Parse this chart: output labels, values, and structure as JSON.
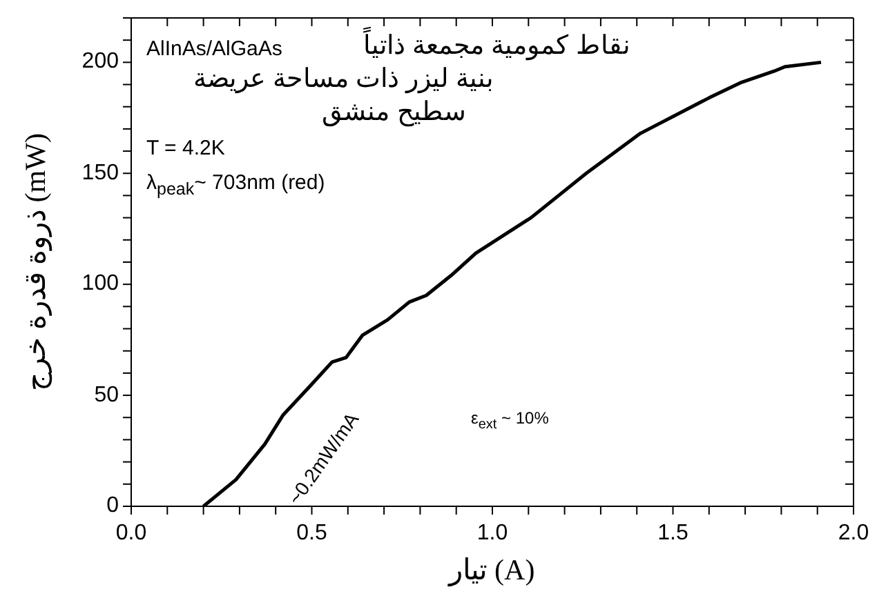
{
  "chart_data": {
    "type": "line",
    "xlabel": "تيار (A)",
    "ylabel": "ذروة قدرة خرج (mW)",
    "x": [
      0.2,
      0.29,
      0.37,
      0.42,
      0.5,
      0.556,
      0.595,
      0.64,
      0.71,
      0.77,
      0.817,
      0.886,
      0.954,
      1.107,
      1.26,
      1.41,
      1.6,
      1.69,
      1.78,
      1.81,
      1.91
    ],
    "series": [
      {
        "color": "#000000",
        "values": [
          0,
          12,
          28,
          41,
          55,
          65,
          67,
          77,
          84,
          92,
          95,
          104,
          114,
          130,
          150,
          168,
          184,
          191,
          196,
          198,
          200
        ]
      }
    ],
    "xlim": [
      0,
      2
    ],
    "xticks": [
      {
        "value": 0,
        "label": "0.0"
      },
      {
        "value": 0.1,
        "label": null
      },
      {
        "value": 0.2,
        "label": null
      },
      {
        "value": 0.3,
        "label": null
      },
      {
        "value": 0.4,
        "label": null
      },
      {
        "value": 0.5,
        "label": "0.5"
      },
      {
        "value": 0.6,
        "label": null
      },
      {
        "value": 0.7,
        "label": null
      },
      {
        "value": 0.8,
        "label": null
      },
      {
        "value": 0.9,
        "label": null
      },
      {
        "value": 1,
        "label": "1.0"
      },
      {
        "value": 1.1,
        "label": null
      },
      {
        "value": 1.2,
        "label": null
      },
      {
        "value": 1.3,
        "label": null
      },
      {
        "value": 1.4,
        "label": null
      },
      {
        "value": 1.5,
        "label": "1.5"
      },
      {
        "value": 1.6,
        "label": null
      },
      {
        "value": 1.7,
        "label": null
      },
      {
        "value": 1.8,
        "label": null
      },
      {
        "value": 1.9,
        "label": null
      },
      {
        "value": 2,
        "label": "2.0"
      }
    ],
    "ylim": [
      0,
      220
    ],
    "yticks": [
      0,
      {
        "value": 10,
        "label": null
      },
      {
        "value": 20,
        "label": null
      },
      {
        "value": 30,
        "label": null
      },
      {
        "value": 40,
        "label": null
      },
      50,
      {
        "value": 60,
        "label": null
      },
      {
        "value": 70,
        "label": null
      },
      {
        "value": 80,
        "label": null
      },
      {
        "value": 90,
        "label": null
      },
      100,
      {
        "value": 110,
        "label": null
      },
      {
        "value": 120,
        "label": null
      },
      {
        "value": 130,
        "label": null
      },
      {
        "value": 140,
        "label": null
      },
      150,
      {
        "value": 160,
        "label": null
      },
      {
        "value": 170,
        "label": null
      },
      {
        "value": 180,
        "label": null
      },
      {
        "value": 190,
        "label": null
      },
      200,
      {
        "value": 210,
        "label": null
      },
      {
        "value": 220,
        "label": null
      }
    ],
    "annotations": [
      "AlInAs/AlGaAs",
      "نقاط كمومية مجمعة ذاتياً",
      "بنية ليزر ذات مساحة عريضة",
      "سطيح منشق",
      "T = 4.2K",
      "λ$_{peak}$~ 703nm (red)",
      "~0.2mW/mA",
      "ε$_{ext}$ ~ 10%"
    ],
    "grid": false,
    "marker": "none",
    "line_style": "solid"
  }
}
